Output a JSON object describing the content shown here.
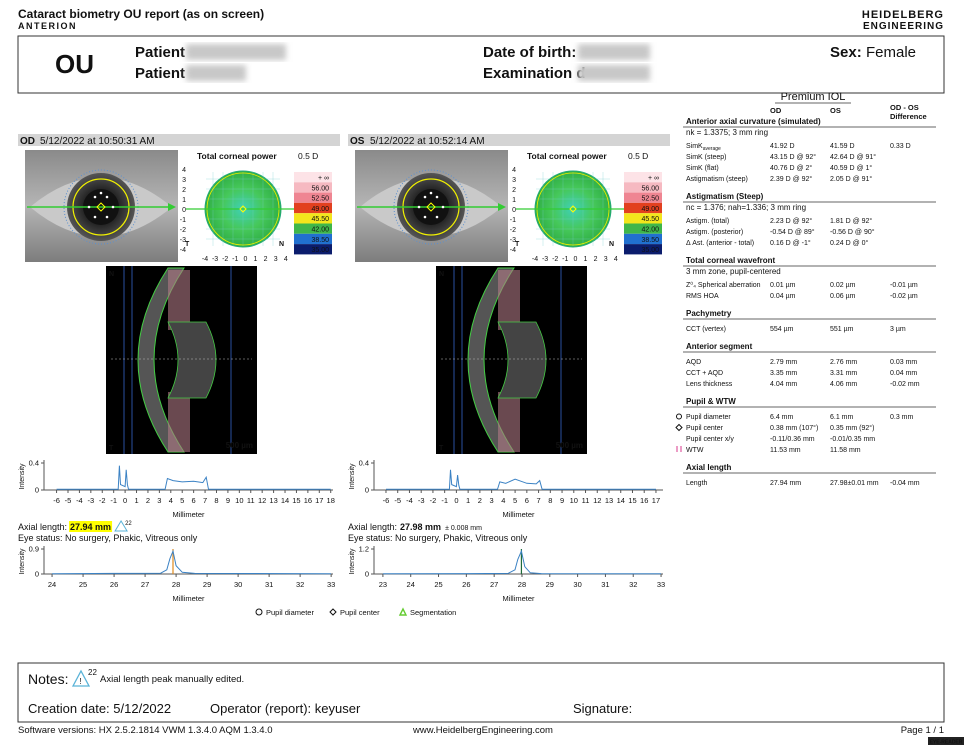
{
  "header": {
    "title": "Cataract biometry OU report (as on screen)",
    "product": "ANTERION",
    "logo": [
      "HEIDELBERG",
      "ENGINEERING"
    ]
  },
  "patient": {
    "eye": "OU",
    "name_label": "Patient",
    "id_label": "Patient",
    "dob_label": "Date of birth:",
    "exam_label": "Examination d",
    "sex_label": "Sex:",
    "sex": "Female"
  },
  "eyes": [
    {
      "eye": "OD",
      "datetime": "5/12/2022 at 10:50:31 AM",
      "topo": {
        "title": "Total corneal power",
        "step": "0.5 D",
        "yticks": [
          4,
          3,
          2,
          1,
          0,
          -1,
          -2,
          -3,
          -4
        ],
        "xticks": [
          -4,
          -3,
          -2,
          -1,
          0,
          1,
          2,
          3,
          4
        ],
        "left": "T",
        "right": "N",
        "scale": [
          "+ ∞",
          "56.00",
          "52.50",
          "49.00",
          "45.50",
          "42.00",
          "38.50",
          "35.00"
        ],
        "scale_colors": [
          "#fde3e7",
          "#f6b9c1",
          "#ef8592",
          "#e2401f",
          "#f3e51c",
          "#3fb64a",
          "#2170cf",
          "#0b1c6c"
        ]
      },
      "scan": {
        "top": "N",
        "bottom": "T",
        "scale": "500 µm"
      },
      "profile": {
        "type": "line",
        "ylabel": "Intensity",
        "xlabel": "Millimeter",
        "color": "#3b82c4",
        "xlim": [
          -7.1,
          18.2
        ],
        "ylim": [
          0,
          0.4
        ],
        "yticks": [
          0.4,
          0
        ],
        "xticks": [
          -6,
          -5,
          -4,
          -3,
          -2,
          -1,
          0,
          1,
          2,
          3,
          4,
          5,
          6,
          7,
          8,
          9,
          10,
          11,
          12,
          13,
          14,
          15,
          16,
          17,
          18
        ],
        "x": [
          -6,
          -0.6,
          -0.5,
          -0.4,
          0,
          0.1,
          0.2,
          0.3,
          0.6,
          3.5,
          3.7,
          4.2,
          5,
          6,
          6.8,
          7.1,
          7.3,
          18
        ],
        "values": [
          0.01,
          0.01,
          0.36,
          0.08,
          0.05,
          0.3,
          0.08,
          0.01,
          0.01,
          0.01,
          0.17,
          0.14,
          0.12,
          0.13,
          0.11,
          0.19,
          0.01,
          0.01
        ]
      },
      "axial": {
        "label": "Axial length:",
        "value": "27.94 mm",
        "highlight": "#ffff00",
        "note_ref": "22"
      },
      "status": "Eye status: No surgery, Phakic, Vitreous only",
      "axial_scan": {
        "type": "line",
        "ylabel": "Intensity",
        "xlabel": "Millimeter",
        "color": "#3b82c4",
        "marker_color": "#e08a1e",
        "xlim": [
          23.74,
          33.06
        ],
        "ylim": [
          0,
          0.9
        ],
        "yticks": [
          0.9,
          0
        ],
        "xticks": [
          24,
          25,
          26,
          27,
          28,
          29,
          30,
          31,
          32,
          33
        ],
        "x": [
          24,
          26,
          27.5,
          27.7,
          27.8,
          27.9,
          28,
          28.2,
          28.6,
          33
        ],
        "values": [
          0.01,
          0.02,
          0.03,
          0.15,
          0.55,
          0.82,
          0.3,
          0.06,
          0.02,
          0.01
        ]
      }
    },
    {
      "eye": "OS",
      "datetime": "5/12/2022 at 10:52:14 AM",
      "topo": {
        "title": "Total corneal power",
        "step": "0.5 D",
        "yticks": [
          4,
          3,
          2,
          1,
          0,
          -1,
          -2,
          -3,
          -4
        ],
        "xticks": [
          -4,
          -3,
          -2,
          -1,
          0,
          1,
          2,
          3,
          4
        ],
        "left": "T",
        "right": "N",
        "scale": [
          "+ ∞",
          "56.00",
          "52.50",
          "49.00",
          "45.50",
          "42.00",
          "38.50",
          "35.00"
        ],
        "scale_colors": [
          "#fde3e7",
          "#f6b9c1",
          "#ef8592",
          "#e2401f",
          "#f3e51c",
          "#3fb64a",
          "#2170cf",
          "#0b1c6c"
        ]
      },
      "scan": {
        "top": "N",
        "bottom": "T",
        "scale": "500 µm"
      },
      "profile": {
        "type": "line",
        "ylabel": "Intensity",
        "xlabel": "Millimeter",
        "color": "#3b82c4",
        "xlim": [
          -7.02,
          17.6
        ],
        "ylim": [
          0,
          0.4
        ],
        "yticks": [
          0.4,
          0
        ],
        "xticks": [
          -6,
          -5,
          -4,
          -3,
          -2,
          -1,
          0,
          1,
          2,
          3,
          4,
          5,
          6,
          7,
          8,
          9,
          10,
          11,
          12,
          13,
          14,
          15,
          16,
          17
        ],
        "x": [
          -6,
          -0.6,
          -0.5,
          -0.4,
          0,
          0.1,
          0.2,
          0.3,
          0.6,
          3.5,
          3.7,
          4.2,
          5,
          6,
          6.8,
          7.1,
          7.3,
          17
        ],
        "values": [
          0.01,
          0.01,
          0.3,
          0.08,
          0.05,
          0.22,
          0.07,
          0.01,
          0.01,
          0.01,
          0.12,
          0.1,
          0.16,
          0.1,
          0.09,
          0.14,
          0.01,
          0.01
        ]
      },
      "axial": {
        "label": "Axial length:",
        "value": "27.98 mm",
        "error": "± 0.008 mm"
      },
      "status": "Eye status: No surgery, Phakic, Vitreous only",
      "axial_scan": {
        "type": "line",
        "ylabel": "Intensity",
        "xlabel": "Millimeter",
        "color": "#3b82c4",
        "marker_color": "#1f6b3a",
        "xlim": [
          22.68,
          33.07
        ],
        "ylim": [
          0,
          1.2
        ],
        "yticks": [
          1.2,
          0
        ],
        "xticks": [
          23,
          24,
          25,
          26,
          27,
          28,
          29,
          30,
          31,
          32,
          33
        ],
        "x": [
          23,
          26,
          27.5,
          27.75,
          27.85,
          27.98,
          28.1,
          28.3,
          28.7,
          33
        ],
        "values": [
          0.01,
          0.02,
          0.03,
          0.2,
          0.7,
          1.1,
          0.35,
          0.06,
          0.02,
          0.01
        ]
      }
    }
  ],
  "legend": [
    "Pupil diameter",
    "Pupil center",
    "Segmentation"
  ],
  "measurements": {
    "title": "Premium IOL",
    "od": "OD",
    "os": "OS",
    "diff": [
      "OD - OS",
      "Difference"
    ],
    "sections": [
      {
        "title": "Anterior axial curvature (simulated)",
        "note": "nk = 1.3375; 3 mm ring",
        "rows": [
          {
            "label": "SimK",
            "sub": "average",
            "od": "41.92 D",
            "os": "41.59 D",
            "diff": "0.33 D"
          },
          {
            "label": "SimK (steep)",
            "od": "43.15 D @ 92°",
            "os": "42.64 D @ 91°"
          },
          {
            "label": "SimK (flat)",
            "od": "40.76 D @ 2°",
            "os": "40.59 D @ 1°"
          },
          {
            "label": "Astigmatism (steep)",
            "od": "2.39 D @ 92°",
            "os": "2.05 D @ 91°"
          }
        ]
      },
      {
        "title": "Astigmatism (Steep)",
        "note": "nc = 1.376; nah=1.336; 3 mm ring",
        "rows": [
          {
            "label": "Astigm. (total)",
            "od": "2.23 D @ 92°",
            "os": "1.81 D @ 92°"
          },
          {
            "label": "Astigm. (posterior)",
            "od": "-0.54 D @ 89°",
            "os": "-0.56 D @ 90°"
          },
          {
            "label": "Δ Ast. (anterior - total)",
            "od": "0.16 D @ -1°",
            "os": "0.24 D @ 0°"
          }
        ]
      },
      {
        "title": "Total corneal wavefront",
        "note": "3 mm zone, pupil-centered",
        "rows": [
          {
            "label": "Z⁰₄ Spherical aberration",
            "od": "0.01 µm",
            "os": "0.02 µm",
            "diff": "-0.01 µm"
          },
          {
            "label": "RMS HOA",
            "od": "0.04 µm",
            "os": "0.06 µm",
            "diff": "-0.02 µm"
          }
        ]
      },
      {
        "title": "Pachymetry",
        "rows": [
          {
            "label": "CCT (vertex)",
            "od": "554 µm",
            "os": "551 µm",
            "diff": "3 µm"
          }
        ]
      },
      {
        "title": "Anterior segment",
        "rows": [
          {
            "label": "AQD",
            "od": "2.79 mm",
            "os": "2.76 mm",
            "diff": "0.03 mm"
          },
          {
            "label": "CCT + AQD",
            "od": "3.35 mm",
            "os": "3.31 mm",
            "diff": "0.04 mm"
          },
          {
            "label": "Lens thickness",
            "od": "4.04 mm",
            "os": "4.06 mm",
            "diff": "-0.02 mm"
          }
        ]
      },
      {
        "title": "Pupil & WTW",
        "rows": [
          {
            "label": "Pupil diameter",
            "od": "6.4 mm",
            "os": "6.1 mm",
            "diff": "0.3 mm"
          },
          {
            "label": "Pupil center",
            "od": "0.38 mm (107°)",
            "os": "0.35 mm (92°)"
          },
          {
            "label": "Pupil center x/y",
            "od": "-0.11/0.36 mm",
            "os": "-0.01/0.35 mm"
          },
          {
            "label": "WTW",
            "od": "11.53 mm",
            "os": "11.58 mm"
          }
        ]
      },
      {
        "title": "Axial length",
        "rows": [
          {
            "label": "Length",
            "od": "27.94 mm",
            "os": "27.98±0.01 mm",
            "diff": "-0.04 mm"
          }
        ]
      }
    ]
  },
  "footer": {
    "notes_label": "Notes:",
    "note_ref": "22",
    "note": "Axial length peak manually edited.",
    "creation": "Creation date: 5/12/2022",
    "operator": "Operator (report): keyuser",
    "signature": "Signature:",
    "software": "Software versions:  HX 2.5.2.1814 VWM 1.3.4.0  AQM 1.3.4.0",
    "website": "www.HeidelbergEngineering.com",
    "page": "Page 1 / 1",
    "badge": "EYE-READER"
  }
}
